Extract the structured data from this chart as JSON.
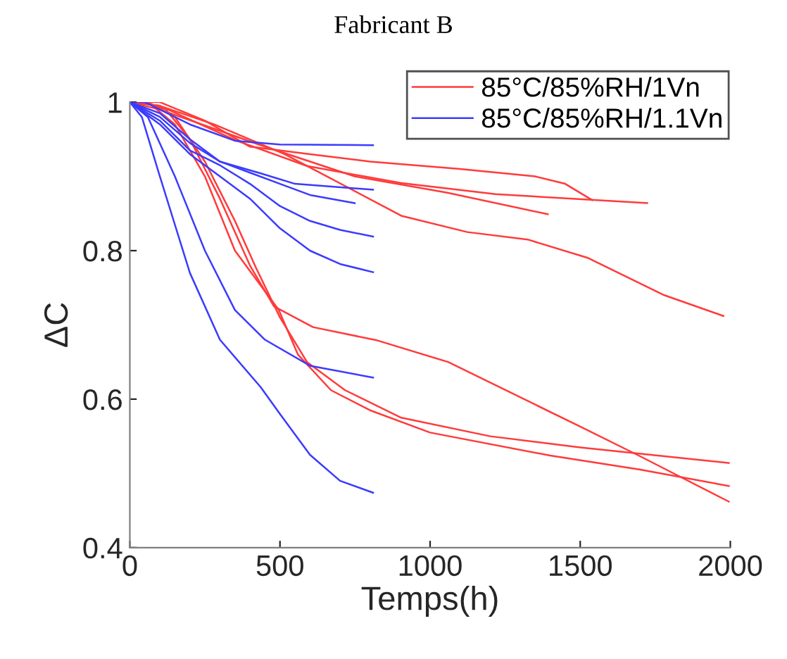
{
  "chart_data": {
    "type": "line",
    "title": "Fabricant B",
    "xlabel": "Temps(h)",
    "ylabel": "ΔC",
    "xlim": [
      0,
      2000
    ],
    "ylim": [
      0.4,
      1
    ],
    "xticks": [
      0,
      500,
      1000,
      1500,
      2000
    ],
    "yticks": [
      0.4,
      0.6,
      0.8,
      1
    ],
    "grid": false,
    "legend": "top right",
    "marker": "none",
    "line_style": "solid",
    "series": [
      {
        "name": "85°C/85%RH/1Vn",
        "color": "#ff3b3b",
        "x": [
          0,
          100,
          250,
          400,
          600,
          800,
          1100,
          1350,
          1450,
          1540
        ],
        "values": [
          1,
          1,
          0.975,
          0.94,
          0.93,
          0.92,
          0.91,
          0.9,
          0.89,
          0.868
        ]
      },
      {
        "color": "#ff3b3b",
        "x": [
          0,
          100,
          356,
          590,
          904,
          1218,
          1723
        ],
        "values": [
          1,
          0.995,
          0.948,
          0.914,
          0.891,
          0.876,
          0.864
        ]
      },
      {
        "color": "#ff3b3b",
        "x": [
          0,
          100,
          436,
          749,
          1058,
          1392
        ],
        "values": [
          1,
          0.99,
          0.942,
          0.9,
          0.878,
          0.849
        ]
      },
      {
        "color": "#ff3b3b",
        "x": [
          0,
          100,
          281,
          515,
          670,
          904,
          1124,
          1325,
          1527,
          1780,
          1977
        ],
        "values": [
          1,
          0.995,
          0.97,
          0.93,
          0.897,
          0.847,
          0.825,
          0.815,
          0.79,
          0.74,
          0.712
        ]
      },
      {
        "color": "#ff3b3b",
        "x": [
          0,
          50,
          120,
          200,
          300,
          400,
          480,
          610,
          825,
          1060,
          1500,
          1690,
          1995
        ],
        "values": [
          1,
          1,
          0.99,
          0.95,
          0.87,
          0.78,
          0.725,
          0.697,
          0.679,
          0.65,
          0.563,
          0.525,
          0.462
        ]
      },
      {
        "color": "#ff3b3b",
        "x": [
          0,
          60,
          150,
          250,
          350,
          420,
          500,
          590,
          717,
          904,
          1200,
          1500,
          1995
        ],
        "values": [
          1,
          1,
          0.98,
          0.92,
          0.84,
          0.777,
          0.71,
          0.65,
          0.612,
          0.575,
          0.55,
          0.535,
          0.514
        ]
      },
      {
        "color": "#ff3b3b",
        "x": [
          0,
          60,
          150,
          250,
          350,
          496,
          560,
          670,
          800,
          1000,
          1400,
          1700,
          1995
        ],
        "values": [
          1,
          1,
          0.97,
          0.9,
          0.8,
          0.72,
          0.66,
          0.612,
          0.585,
          0.555,
          0.524,
          0.505,
          0.483
        ]
      },
      {
        "name": "85°C/85%RH/1.1Vn",
        "color": "#3b3bff",
        "x": [
          0,
          50,
          100,
          200,
          350,
          500,
          810
        ],
        "values": [
          1,
          1,
          0.99,
          0.97,
          0.948,
          0.943,
          0.942
        ]
      },
      {
        "color": "#3b3bff",
        "x": [
          0,
          100,
          200,
          300,
          436,
          550,
          810
        ],
        "values": [
          1,
          0.985,
          0.95,
          0.92,
          0.904,
          0.89,
          0.882
        ]
      },
      {
        "color": "#3b3bff",
        "x": [
          0,
          100,
          200,
          300,
          400,
          500,
          600,
          749
        ],
        "values": [
          1,
          0.98,
          0.945,
          0.92,
          0.905,
          0.89,
          0.875,
          0.864
        ]
      },
      {
        "color": "#3b3bff",
        "x": [
          0,
          100,
          200,
          300,
          400,
          500,
          600,
          700,
          810
        ],
        "values": [
          1,
          0.975,
          0.935,
          0.915,
          0.89,
          0.86,
          0.84,
          0.828,
          0.819
        ]
      },
      {
        "color": "#3b3bff",
        "x": [
          0,
          100,
          200,
          300,
          400,
          500,
          600,
          700,
          810
        ],
        "values": [
          1,
          0.97,
          0.93,
          0.9,
          0.87,
          0.83,
          0.8,
          0.782,
          0.771
        ]
      },
      {
        "color": "#3b3bff",
        "x": [
          0,
          60,
          150,
          250,
          350,
          450,
          600,
          810
        ],
        "values": [
          1,
          0.98,
          0.9,
          0.8,
          0.72,
          0.68,
          0.645,
          0.629
        ]
      },
      {
        "color": "#3b3bff",
        "x": [
          0,
          40,
          100,
          200,
          300,
          436,
          500,
          600,
          700,
          810
        ],
        "values": [
          1,
          0.98,
          0.9,
          0.77,
          0.68,
          0.616,
          0.58,
          0.525,
          0.49,
          0.474
        ]
      }
    ]
  }
}
